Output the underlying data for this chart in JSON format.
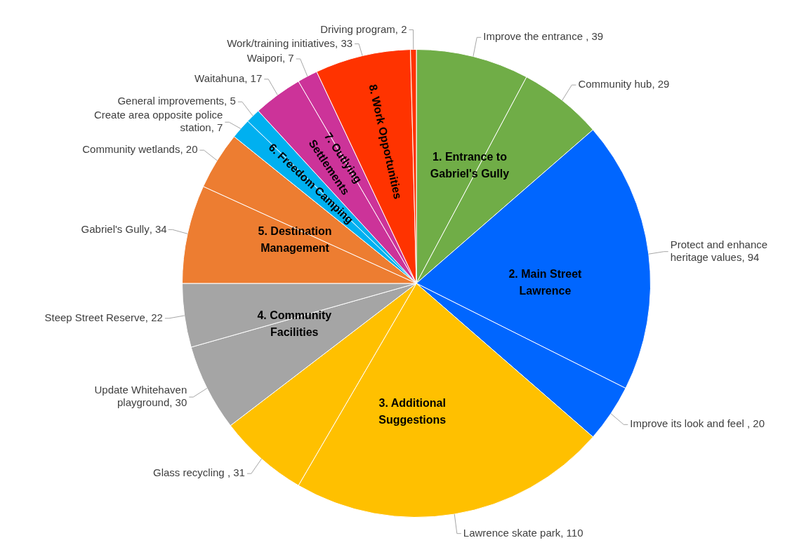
{
  "chart_data": {
    "type": "pie",
    "categories": [
      "Improve the entrance ",
      "Community hub",
      "Protect and enhance heritage values",
      "Improve its look and feel ",
      "Lawrence skate park",
      "Glass recycling ",
      "Update Whitehaven playground",
      "Steep Street Reserve",
      "Gabriel's Gully",
      "Community wetlands",
      "Create area opposite police station",
      "General improvements",
      "Waitahuna",
      "Waipori",
      "Work/training initiatives",
      "Driving program"
    ],
    "values": [
      39,
      29,
      94,
      20,
      110,
      31,
      30,
      22,
      34,
      20,
      7,
      5,
      17,
      7,
      33,
      2
    ],
    "colors": [
      "#70ad47",
      "#70ad47",
      "#0066ff",
      "#0066ff",
      "#ffc000",
      "#ffc000",
      "#a5a5a5",
      "#a5a5a5",
      "#ed7d31",
      "#ed7d31",
      "#00b0f0",
      "#00b0f0",
      "#cc3399",
      "#cc3399",
      "#ff3300",
      "#ff3300"
    ],
    "value_labels": [
      ", 39",
      ", 29",
      ", 94",
      ", 20",
      ", 110",
      ", 31",
      ", 30",
      ", 22",
      ", 34",
      ", 20",
      ", 7",
      ", 5",
      ", 17",
      ", 7",
      ", 33",
      ", 2"
    ],
    "annotations": [
      "1. Entrance to Gabriel's Gully",
      "2. Main Street Lawrence",
      "3. Additional Suggestions",
      "4. Community Facilities",
      "5. Destination Management",
      "6. Freedom Camping",
      "7. Outlying Settlements",
      "8. Work Opportunities"
    ]
  }
}
